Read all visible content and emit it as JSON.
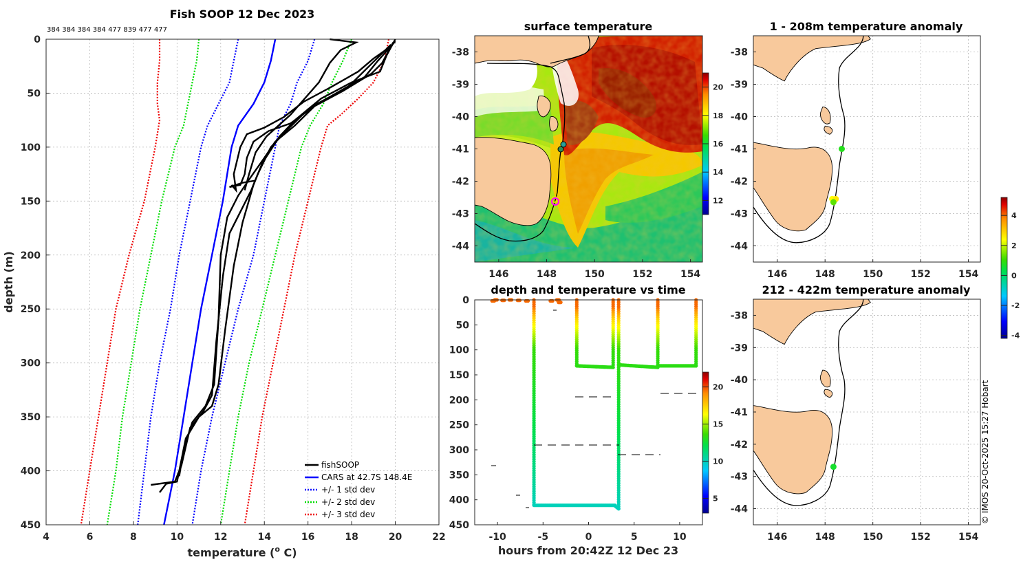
{
  "chart_data": [
    {
      "type": "line",
      "title": "Fish SOOP 12 Dec 2023",
      "subtitle": "384 384 384 384 477 839 477 477",
      "xlabel": "temperature (o C)",
      "ylabel": "depth (m)",
      "xlim": [
        4,
        22
      ],
      "ylim": [
        450,
        0
      ],
      "xticks": [
        "4",
        "6",
        "8",
        "10",
        "12",
        "14",
        "16",
        "18",
        "20",
        "22"
      ],
      "yticks": [
        "0",
        "50",
        "100",
        "150",
        "200",
        "250",
        "300",
        "350",
        "400",
        "450"
      ],
      "legend": [
        "fishSOOP",
        "CARS at 42.7S 148.4E",
        "+/- 1 std dev",
        "+/- 2 std dev",
        "+/- 3 std dev"
      ],
      "series": [
        {
          "name": "CARS mean",
          "color": "#0000ff",
          "style": "solid",
          "points": [
            [
              14.5,
              0
            ],
            [
              14.3,
              20
            ],
            [
              14.0,
              40
            ],
            [
              13.5,
              60
            ],
            [
              12.8,
              80
            ],
            [
              12.5,
              100
            ],
            [
              12.1,
              150
            ],
            [
              11.6,
              200
            ],
            [
              11.1,
              250
            ],
            [
              10.7,
              300
            ],
            [
              10.3,
              350
            ],
            [
              9.9,
              400
            ],
            [
              9.4,
              450
            ]
          ]
        },
        {
          "name": "+1 std",
          "color": "#0000ff",
          "style": "dotted",
          "points": [
            [
              16.3,
              0
            ],
            [
              16.0,
              20
            ],
            [
              15.5,
              40
            ],
            [
              15.2,
              60
            ],
            [
              14.7,
              80
            ],
            [
              14.5,
              100
            ],
            [
              14.0,
              150
            ],
            [
              13.5,
              200
            ],
            [
              12.8,
              250
            ],
            [
              12.2,
              300
            ],
            [
              11.6,
              350
            ],
            [
              11.1,
              400
            ],
            [
              10.7,
              450
            ]
          ]
        },
        {
          "name": "-1 std",
          "color": "#0000ff",
          "style": "dotted",
          "points": [
            [
              12.8,
              0
            ],
            [
              12.6,
              20
            ],
            [
              12.4,
              40
            ],
            [
              11.9,
              60
            ],
            [
              11.4,
              80
            ],
            [
              11.1,
              100
            ],
            [
              10.6,
              150
            ],
            [
              10.1,
              200
            ],
            [
              9.7,
              250
            ],
            [
              9.2,
              300
            ],
            [
              8.8,
              350
            ],
            [
              8.5,
              400
            ],
            [
              8.2,
              450
            ]
          ]
        },
        {
          "name": "+2 std",
          "color": "#00dd00",
          "style": "dotted",
          "points": [
            [
              18.0,
              0
            ],
            [
              17.6,
              20
            ],
            [
              17.1,
              40
            ],
            [
              16.7,
              60
            ],
            [
              16.1,
              80
            ],
            [
              15.7,
              100
            ],
            [
              15.1,
              150
            ],
            [
              14.5,
              200
            ],
            [
              13.9,
              250
            ],
            [
              13.3,
              300
            ],
            [
              12.8,
              350
            ],
            [
              12.4,
              400
            ],
            [
              12.0,
              450
            ]
          ]
        },
        {
          "name": "-2 std",
          "color": "#00dd00",
          "style": "dotted",
          "points": [
            [
              11.0,
              0
            ],
            [
              10.9,
              20
            ],
            [
              10.7,
              40
            ],
            [
              10.5,
              60
            ],
            [
              10.3,
              80
            ],
            [
              9.9,
              100
            ],
            [
              9.3,
              150
            ],
            [
              8.8,
              200
            ],
            [
              8.3,
              250
            ],
            [
              7.9,
              300
            ],
            [
              7.5,
              350
            ],
            [
              7.2,
              400
            ],
            [
              6.8,
              450
            ]
          ]
        },
        {
          "name": "+3 std",
          "color": "#ee0000",
          "style": "dotted",
          "points": [
            [
              19.7,
              0
            ],
            [
              19.5,
              20
            ],
            [
              19.0,
              40
            ],
            [
              18.3,
              55
            ],
            [
              17.5,
              70
            ],
            [
              16.9,
              80
            ],
            [
              16.6,
              100
            ],
            [
              16.0,
              150
            ],
            [
              15.4,
              200
            ],
            [
              14.9,
              250
            ],
            [
              14.4,
              300
            ],
            [
              13.9,
              350
            ],
            [
              13.5,
              400
            ],
            [
              13.1,
              450
            ]
          ]
        },
        {
          "name": "-3 std",
          "color": "#ee0000",
          "style": "dotted",
          "points": [
            [
              9.2,
              0
            ],
            [
              9.2,
              20
            ],
            [
              9.1,
              40
            ],
            [
              9.1,
              60
            ],
            [
              9.2,
              75
            ],
            [
              9.0,
              100
            ],
            [
              8.5,
              150
            ],
            [
              7.8,
              200
            ],
            [
              7.2,
              250
            ],
            [
              6.8,
              300
            ],
            [
              6.4,
              350
            ],
            [
              6.0,
              400
            ],
            [
              5.6,
              450
            ]
          ]
        },
        {
          "name": "fishSOOP",
          "color": "#000000",
          "style": "solid",
          "points": [
            [
              20.0,
              0
            ],
            [
              19.6,
              15
            ],
            [
              19.3,
              30
            ],
            [
              18.0,
              40
            ],
            [
              16.6,
              55
            ],
            [
              15.4,
              75
            ],
            [
              14.7,
              90
            ],
            [
              13.9,
              115
            ],
            [
              13.5,
              135
            ],
            [
              13.0,
              170
            ],
            [
              12.6,
              210
            ],
            [
              12.2,
              270
            ],
            [
              11.9,
              320
            ],
            [
              11.6,
              340
            ],
            [
              11.0,
              350
            ],
            [
              10.4,
              370
            ],
            [
              10.1,
              400
            ],
            [
              10.0,
              410
            ],
            [
              9.5,
              412
            ],
            [
              9.2,
              420
            ]
          ]
        },
        {
          "name": "fishSOOP",
          "color": "#000000",
          "style": "solid",
          "points": [
            [
              20.0,
              2
            ],
            [
              19.2,
              20
            ],
            [
              18.6,
              35
            ],
            [
              17.3,
              50
            ],
            [
              16.0,
              65
            ],
            [
              15.0,
              85
            ],
            [
              14.3,
              100
            ],
            [
              13.7,
              125
            ],
            [
              13.4,
              140
            ],
            [
              12.4,
              180
            ],
            [
              12.1,
              220
            ],
            [
              11.8,
              280
            ],
            [
              11.6,
              330
            ],
            [
              11.2,
              345
            ],
            [
              10.6,
              360
            ],
            [
              10.2,
              395
            ],
            [
              9.9,
              410
            ],
            [
              8.8,
              413
            ]
          ]
        },
        {
          "name": "fishSOOP",
          "color": "#000000",
          "style": "solid",
          "points": [
            [
              19.8,
              5
            ],
            [
              18.8,
              25
            ],
            [
              17.8,
              45
            ],
            [
              16.4,
              60
            ],
            [
              15.4,
              80
            ],
            [
              14.5,
              95
            ],
            [
              14.0,
              110
            ],
            [
              13.3,
              130
            ],
            [
              12.8,
              145
            ],
            [
              12.3,
              165
            ],
            [
              12.0,
              200
            ],
            [
              11.9,
              260
            ],
            [
              11.7,
              320
            ],
            [
              11.3,
              340
            ],
            [
              10.7,
              355
            ],
            [
              10.3,
              380
            ],
            [
              10.1,
              405
            ]
          ]
        },
        {
          "name": "fishSOOP",
          "color": "#000000",
          "style": "solid",
          "points": [
            [
              17.0,
              0
            ],
            [
              18.2,
              3
            ],
            [
              17.5,
              10
            ],
            [
              17.0,
              22
            ],
            [
              16.5,
              40
            ],
            [
              15.2,
              70
            ],
            [
              14.1,
              90
            ],
            [
              13.6,
              105
            ],
            [
              13.3,
              125
            ],
            [
              13.1,
              140
            ]
          ]
        },
        {
          "name": "fishSOOP",
          "color": "#000000",
          "style": "solid",
          "points": [
            [
              19.9,
              3
            ],
            [
              19.4,
              22
            ],
            [
              18.9,
              32
            ],
            [
              17.6,
              48
            ],
            [
              16.3,
              62
            ],
            [
              15.2,
              78
            ],
            [
              14.2,
              85
            ],
            [
              13.5,
              95
            ],
            [
              13.2,
              110
            ],
            [
              13.1,
              125
            ],
            [
              12.9,
              135
            ],
            [
              12.4,
              137
            ],
            [
              13.0,
              133
            ],
            [
              13.6,
              131
            ]
          ]
        },
        {
          "name": "fishSOOP",
          "color": "#000000",
          "style": "solid",
          "points": [
            [
              19.7,
              8
            ],
            [
              19.0,
              18
            ],
            [
              18.3,
              30
            ],
            [
              17.0,
              45
            ],
            [
              15.8,
              58
            ],
            [
              14.9,
              72
            ],
            [
              14.0,
              82
            ],
            [
              13.2,
              88
            ],
            [
              12.9,
              100
            ],
            [
              12.6,
              125
            ],
            [
              12.7,
              140
            ],
            [
              12.5,
              135
            ]
          ]
        }
      ]
    },
    {
      "type": "heatmap",
      "title": "surface temperature",
      "xlim": [
        145,
        154.5
      ],
      "ylim": [
        -44.5,
        -37.5
      ],
      "xticks": [
        "146",
        "148",
        "150",
        "152",
        "154"
      ],
      "yticks": [
        "-38",
        "-39",
        "-40",
        "-41",
        "-42",
        "-43",
        "-44"
      ],
      "colorbar": {
        "range": [
          11,
          21
        ],
        "ticks": [
          "20",
          "18",
          "16",
          "14",
          "12"
        ]
      },
      "markers": [
        {
          "lon": 148.7,
          "lat": -41.0,
          "color": "#2aa198"
        },
        {
          "lon": 148.6,
          "lat": -41.1,
          "color": "#2e8b57"
        },
        {
          "lon": 148.35,
          "lat": -42.6,
          "color": "#e0e000"
        },
        {
          "lon": 148.4,
          "lat": -42.65,
          "color": "#ff00ff"
        }
      ]
    },
    {
      "type": "scatter",
      "title": "depth and temperature vs time",
      "xlabel": "hours from 20:42Z 12 Dec 23",
      "xlim": [
        -12.5,
        12.5
      ],
      "ylim": [
        450,
        0
      ],
      "xticks": [
        "-10",
        "-5",
        "0",
        "5",
        "10"
      ],
      "yticks": [
        "0",
        "50",
        "100",
        "150",
        "200",
        "250",
        "300",
        "350",
        "400",
        "450"
      ],
      "colorbar": {
        "range": [
          3,
          22
        ],
        "ticks": [
          "20",
          "15",
          "10",
          "5"
        ]
      }
    },
    {
      "type": "scatter",
      "title": "1 - 208m temperature anomaly",
      "xlim": [
        145,
        154.5
      ],
      "ylim": [
        -44.5,
        -37.5
      ],
      "xticks": [
        "146",
        "148",
        "150",
        "152",
        "154"
      ],
      "yticks": [
        "-38",
        "-39",
        "-40",
        "-41",
        "-42",
        "-43",
        "-44"
      ],
      "points": [
        {
          "lon": 148.7,
          "lat": -41.0,
          "anomaly": 0.5
        },
        {
          "lon": 148.3,
          "lat": -42.55,
          "anomaly": 2.0
        },
        {
          "lon": 148.45,
          "lat": -42.55,
          "anomaly": 2.2
        },
        {
          "lon": 148.35,
          "lat": -42.65,
          "anomaly": 1.0
        }
      ]
    },
    {
      "type": "scatter",
      "title": "212 - 422m temperature anomaly",
      "xlim": [
        145,
        154.5
      ],
      "ylim": [
        -44.5,
        -37.5
      ],
      "xticks": [
        "146",
        "148",
        "150",
        "152",
        "154"
      ],
      "yticks": [
        "-38",
        "-39",
        "-40",
        "-41",
        "-42",
        "-43",
        "-44"
      ],
      "points": [
        {
          "lon": 148.35,
          "lat": -42.7,
          "anomaly": 0.3
        }
      ],
      "colorbar": {
        "range": [
          -4.2,
          5.2
        ],
        "ticks": [
          "4",
          "2",
          "0",
          "-2",
          "-4"
        ]
      }
    }
  ],
  "credit": "© IMOS 20-Oct-2025 15:27 Hobart"
}
